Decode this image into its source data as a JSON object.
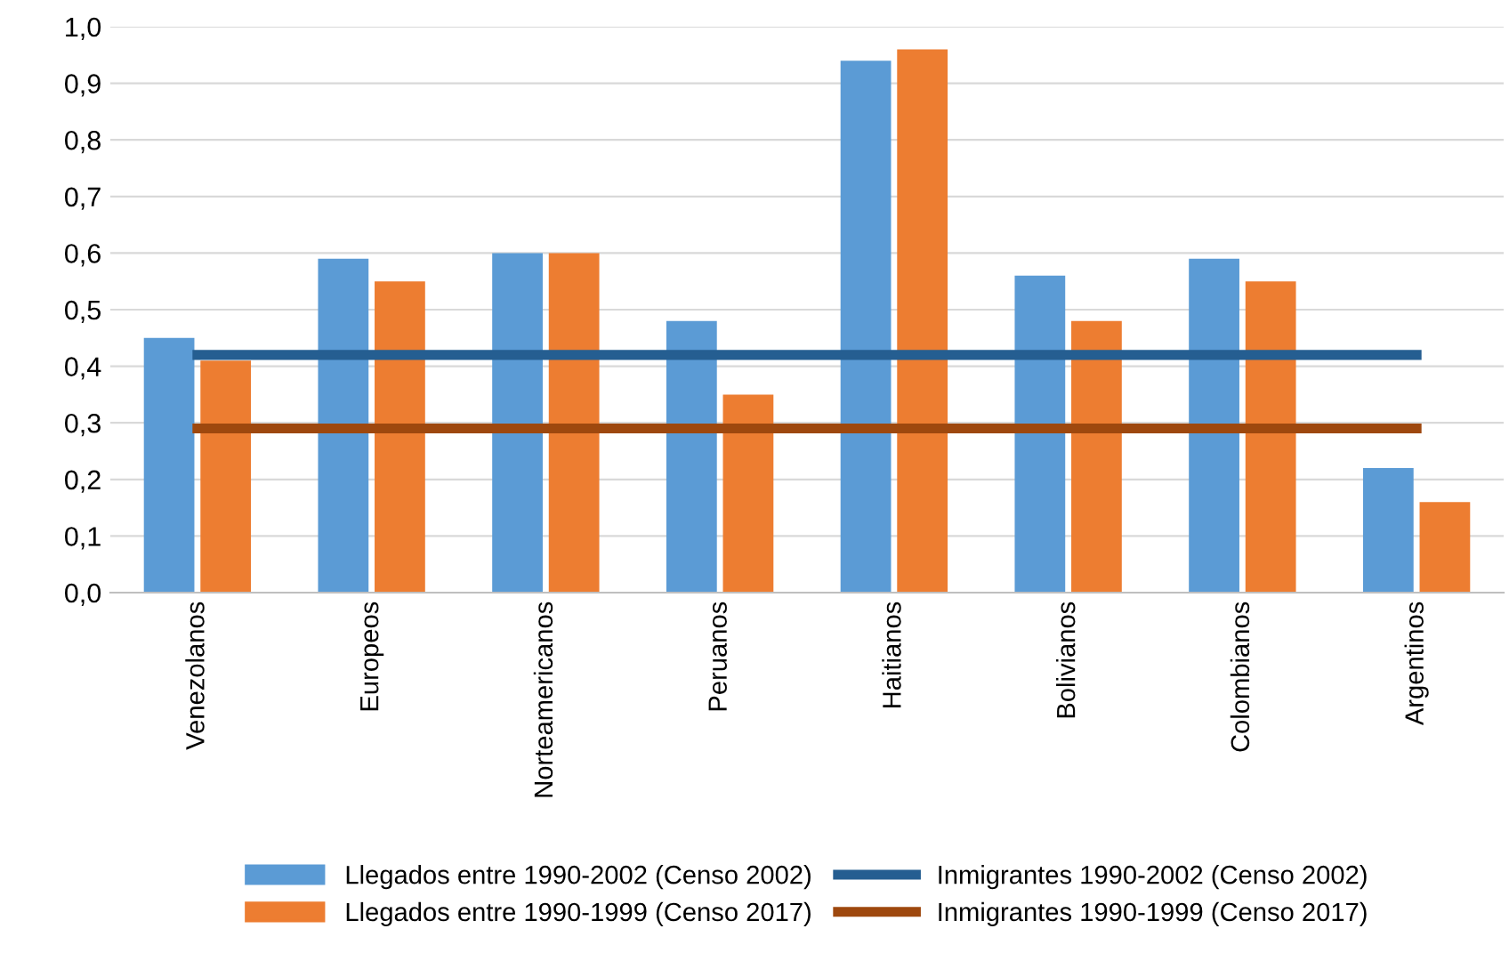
{
  "chart_data": {
    "type": "bar",
    "categories": [
      "Venezolanos",
      "Europeos",
      "Norteamericanos",
      "Peruanos",
      "Haitianos",
      "Bolivianos",
      "Colombianos",
      "Argentinos"
    ],
    "series": [
      {
        "name": "Llegados entre 1990-2002 (Censo 2002)",
        "color": "#5b9bd5",
        "values": [
          0.45,
          0.59,
          0.6,
          0.48,
          0.94,
          0.56,
          0.59,
          0.22
        ]
      },
      {
        "name": "Llegados entre 1990-1999 (Censo 2017)",
        "color": "#ed7d31",
        "values": [
          0.41,
          0.55,
          0.6,
          0.35,
          0.96,
          0.48,
          0.55,
          0.16
        ]
      },
      {
        "name": "Inmigrantes 1990-2002 (Censo 2002)",
        "type": "line",
        "color": "#255e91",
        "values": [
          0.42,
          0.42,
          0.42,
          0.42,
          0.42,
          0.42,
          0.42,
          0.42
        ]
      },
      {
        "name": "Inmigrantes 1990-1999 (Censo 2017)",
        "type": "line",
        "color": "#9e480e",
        "values": [
          0.29,
          0.29,
          0.29,
          0.29,
          0.29,
          0.29,
          0.29,
          0.29
        ]
      }
    ],
    "ylim": [
      0,
      1.0
    ],
    "yticks": [
      {
        "value": 0,
        "label": "0,0"
      },
      {
        "value": 0.1,
        "label": "0,1"
      },
      {
        "value": 0.2,
        "label": "0,2"
      },
      {
        "value": 0.3,
        "label": "0,3"
      },
      {
        "value": 0.4,
        "label": "0,4"
      },
      {
        "value": 0.5,
        "label": "0,5"
      },
      {
        "value": 0.6,
        "label": "0,6"
      },
      {
        "value": 0.7,
        "label": "0,7"
      },
      {
        "value": 0.8,
        "label": "0,8"
      },
      {
        "value": 0.9,
        "label": "0,9"
      },
      {
        "value": 1.0,
        "label": "1,0"
      }
    ],
    "grid": "y",
    "legend": "bottom"
  }
}
